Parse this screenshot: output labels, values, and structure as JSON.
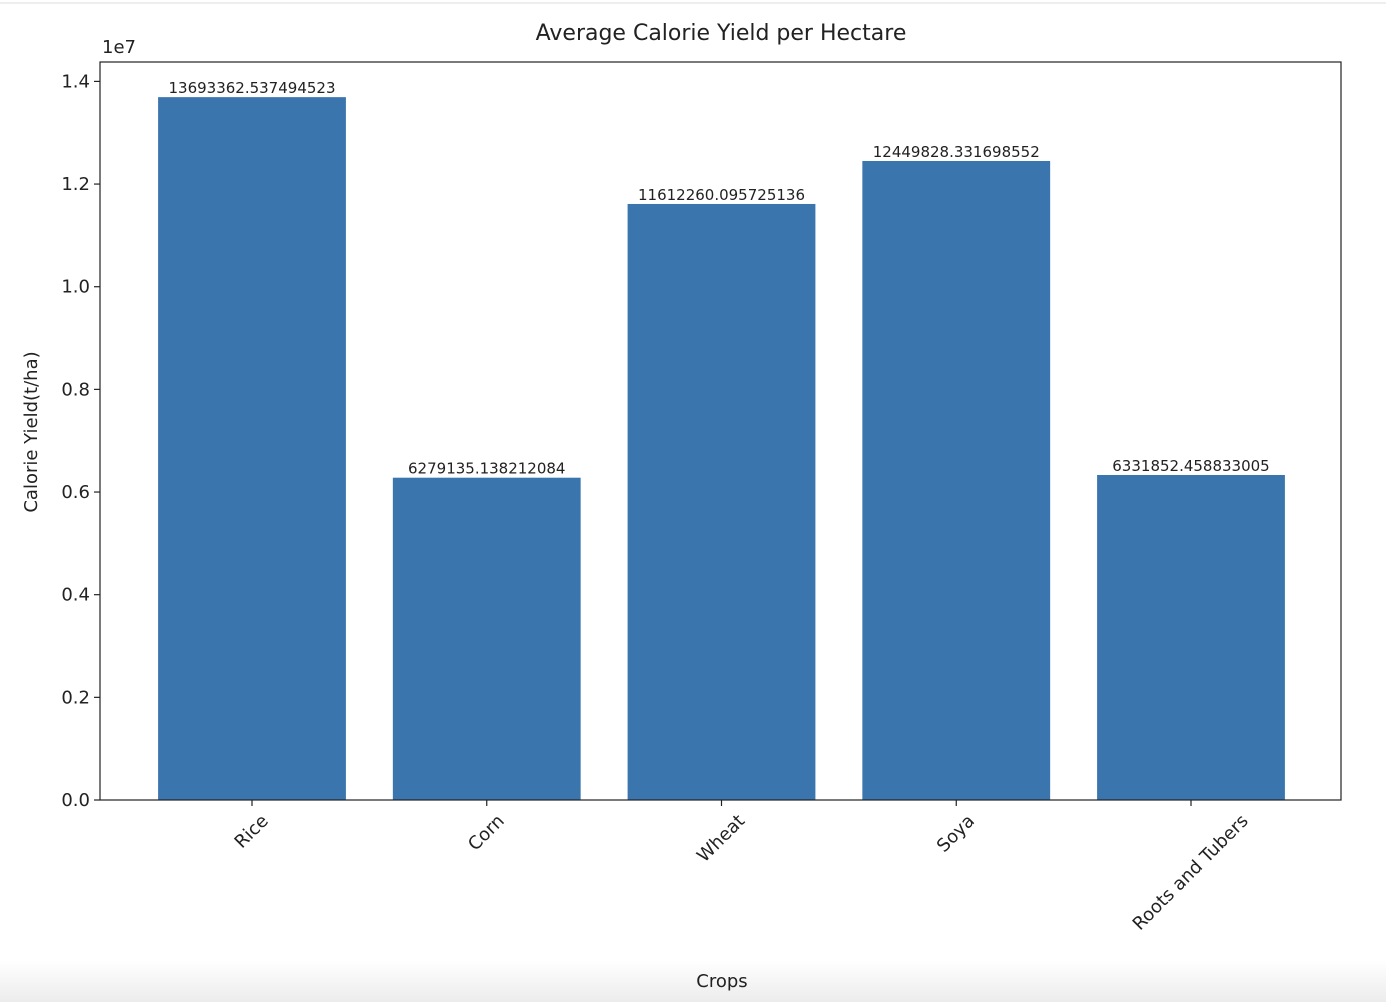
{
  "chart_data": {
    "type": "bar",
    "title": "Average Calorie Yield per Hectare",
    "x_label": "Crops",
    "y_label": "Calorie Yield(t/ha)",
    "y_offset_label": "1e7",
    "categories": [
      "Rice",
      "Corn",
      "Wheat",
      "Soya",
      "Roots and Tubers"
    ],
    "values": [
      13693362.537494523,
      6279135.138212084,
      11612260.095725136,
      12449828.331698552,
      6331852.458833005
    ],
    "value_labels": [
      "13693362.537494523",
      "6279135.138212084",
      "11612260.095725136",
      "12449828.331698552",
      "6331852.458833005"
    ],
    "color": "#3a75ae",
    "ylim": [
      0,
      14378030.66
    ],
    "yticks": [
      {
        "value": 0,
        "label": "0.0"
      },
      {
        "value": 2000000,
        "label": "0.2"
      },
      {
        "value": 4000000,
        "label": "0.4"
      },
      {
        "value": 6000000,
        "label": "0.6"
      },
      {
        "value": 8000000,
        "label": "0.8"
      },
      {
        "value": 10000000,
        "label": "1.0"
      },
      {
        "value": 12000000,
        "label": "1.2"
      },
      {
        "value": 14000000,
        "label": "1.4"
      }
    ],
    "grid": false
  }
}
